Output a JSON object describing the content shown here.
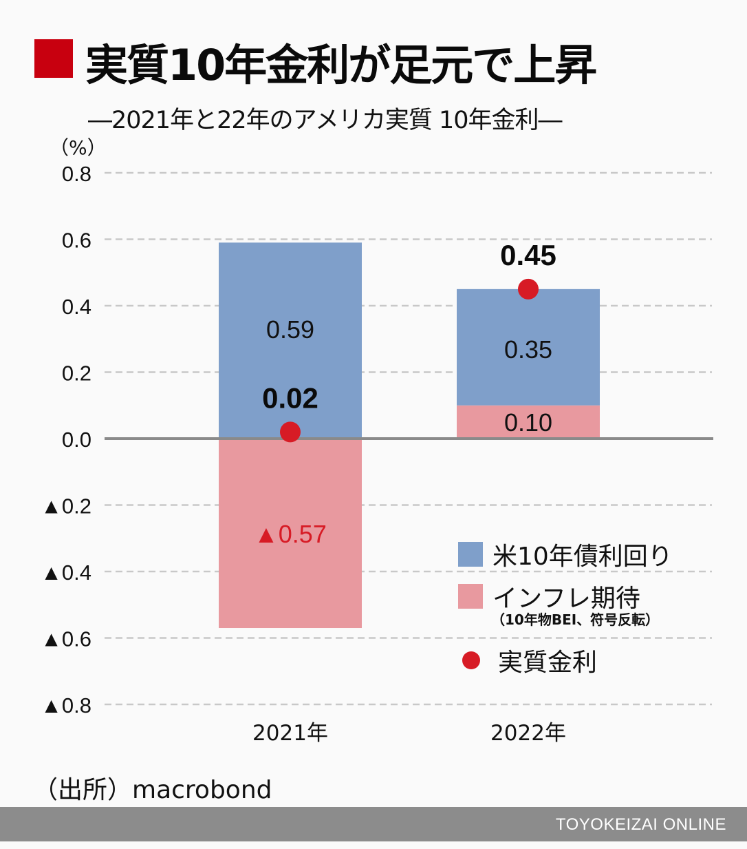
{
  "header": {
    "title": "実質10年金利が足元で上昇",
    "subtitle": "―2021年と22年のアメリカ実質 10年金利―",
    "unit": "（%）"
  },
  "legend": {
    "items": [
      {
        "label": "米10年債利回り",
        "color": "#7f9fca"
      },
      {
        "label": "インフレ期待",
        "color": "#e8999f"
      },
      {
        "label": "実質金利",
        "color": "#d71b25"
      }
    ],
    "inflation_note": "（10年物BEI、符号反転）"
  },
  "source": "（出所）macrobond",
  "footer": {
    "brand": "TOYOKEIZAI ONLINE"
  },
  "colors": {
    "accent": "#c8000f",
    "yield_bar": "#7f9fca",
    "inflation_bar": "#e8999f",
    "real_rate_dot": "#d71b25",
    "negative_label": "#d71b25",
    "grid": "#c8c8c8",
    "zero_line": "#8a8a8a"
  },
  "chart_data": {
    "type": "bar",
    "stacked": true,
    "title": "実質10年金利が足元で上昇",
    "subtitle": "―2021年と22年のアメリカ実質 10年金利―",
    "ylabel": "（%）",
    "xlabel": "",
    "ylim": [
      -0.8,
      0.8
    ],
    "yticks": [
      0.8,
      0.6,
      0.4,
      0.2,
      0.0,
      -0.2,
      -0.4,
      -0.6,
      -0.8
    ],
    "ytick_labels": [
      "0.8",
      "0.6",
      "0.4",
      "0.2",
      "0.0",
      "▲0.2",
      "▲0.4",
      "▲0.6",
      "▲0.8"
    ],
    "grid": true,
    "legend_position": "bottom-right",
    "categories": [
      "2021年",
      "2022年"
    ],
    "series": [
      {
        "name": "米10年債利回り",
        "type": "bar",
        "values": [
          0.59,
          0.35
        ],
        "labels": [
          "0.59",
          "0.35"
        ]
      },
      {
        "name": "インフレ期待",
        "type": "bar",
        "values": [
          -0.57,
          0.1
        ],
        "labels": [
          "▲0.57",
          "0.10"
        ]
      },
      {
        "name": "実質金利",
        "type": "scatter",
        "values": [
          0.02,
          0.45
        ],
        "labels": [
          "0.02",
          "0.45"
        ]
      }
    ]
  }
}
